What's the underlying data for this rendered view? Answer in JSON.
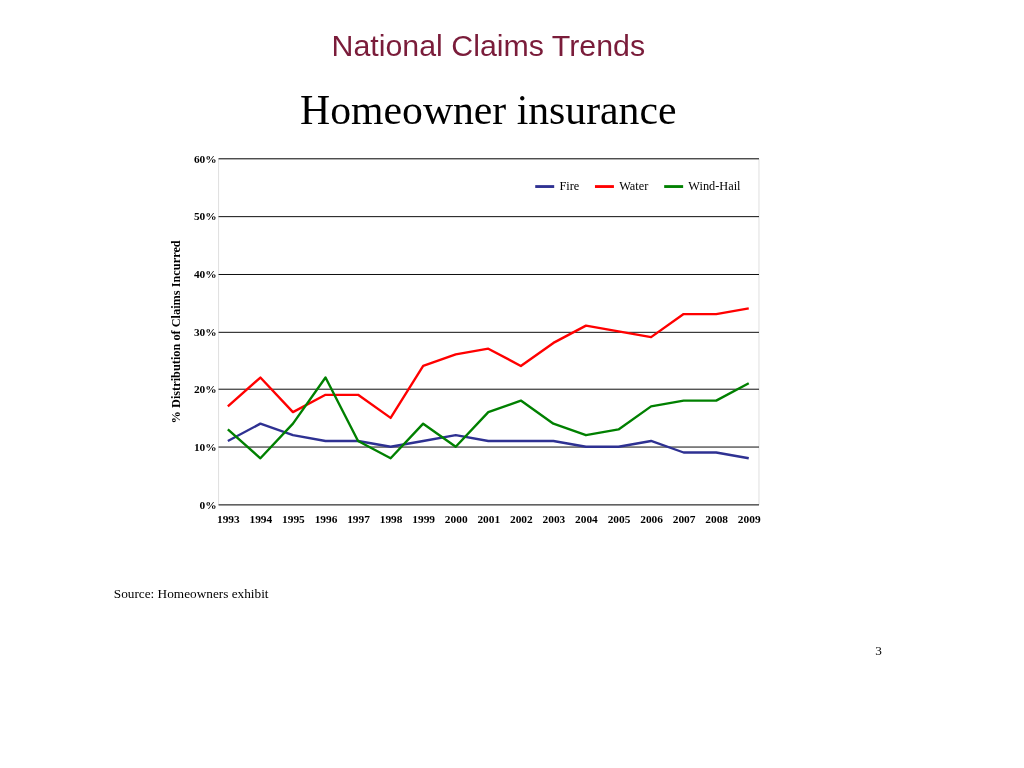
{
  "chart_data": {
    "type": "line",
    "title": "National Claims Trends",
    "subtitle": "Homeowner insurance",
    "ylabel": "% Distribution of Claims Incurred",
    "categories": [
      "1993",
      "1994",
      "1995",
      "1996",
      "1997",
      "1998",
      "1999",
      "2000",
      "2001",
      "2002",
      "2003",
      "2004",
      "2005",
      "2006",
      "2007",
      "2008",
      "2009"
    ],
    "series": [
      {
        "name": "Fire",
        "color": "#2e3192",
        "values": [
          11,
          14,
          12,
          11,
          11,
          10,
          11,
          12,
          11,
          11,
          11,
          10,
          10,
          11,
          9,
          9,
          8
        ]
      },
      {
        "name": "Water",
        "color": "#ff0000",
        "values": [
          17,
          22,
          16,
          19,
          19,
          15,
          24,
          26,
          27,
          24,
          28,
          31,
          30,
          29,
          33,
          33,
          34
        ]
      },
      {
        "name": "Wind-Hail",
        "color": "#008000",
        "values": [
          13,
          8,
          14,
          22,
          11,
          8,
          14,
          10,
          16,
          18,
          14,
          12,
          13,
          17,
          18,
          18,
          21
        ]
      }
    ],
    "ylim": [
      0,
      60
    ],
    "yticks": [
      {
        "value": 0,
        "label": "0%"
      },
      {
        "value": 10,
        "label": "10%"
      },
      {
        "value": 20,
        "label": "20%"
      },
      {
        "value": 30,
        "label": "30%"
      },
      {
        "value": 40,
        "label": "40%"
      },
      {
        "value": 50,
        "label": "50%"
      },
      {
        "value": 60,
        "label": "60%"
      }
    ],
    "grid": "y",
    "legend": "top right",
    "marker": "none",
    "line_style": "solid",
    "annotations": [
      "Source: Homeowners exhibit",
      "3"
    ]
  }
}
